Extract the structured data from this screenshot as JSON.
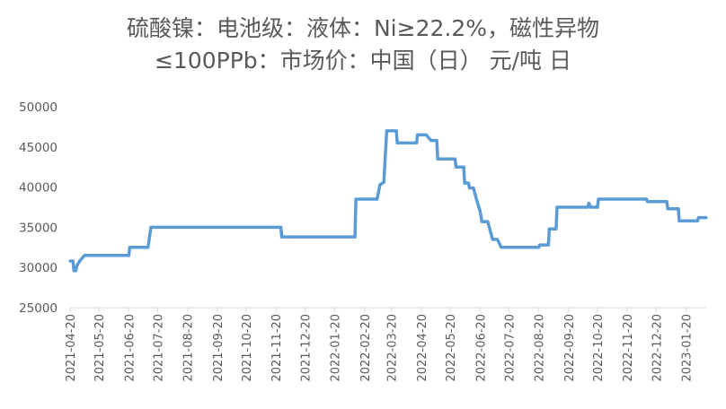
{
  "chart_data": {
    "type": "line",
    "title_line1": "硫酸镍：电池级：液体：Ni≥22.2%，磁性异物",
    "title_line2": "≤100PPb：市场价：中国（日） 元/吨 日",
    "xlabel": "",
    "ylabel": "",
    "ylim": [
      25000,
      50000
    ],
    "yticks": [
      "25000",
      "30000",
      "35000",
      "40000",
      "45000",
      "50000"
    ],
    "xlim": [
      "2021-04-20",
      "2023-02-10"
    ],
    "xticks": [
      "2021-04-20",
      "2021-05-20",
      "2021-06-20",
      "2021-07-20",
      "2021-08-20",
      "2021-09-20",
      "2021-10-20",
      "2021-11-20",
      "2021-12-20",
      "2022-01-20",
      "2022-02-20",
      "2022-03-20",
      "2022-04-20",
      "2022-05-20",
      "2022-06-20",
      "2022-07-20",
      "2022-08-20",
      "2022-09-20",
      "2022-10-20",
      "2022-11-20",
      "2022-12-20",
      "2023-01-20"
    ],
    "grid": false,
    "legend": "none",
    "series": [
      {
        "color": "#5b9bd5",
        "points": [
          [
            "2021-04-20",
            30800
          ],
          [
            "2021-04-23",
            30800
          ],
          [
            "2021-04-24",
            29600
          ],
          [
            "2021-04-26",
            29600
          ],
          [
            "2021-04-27",
            30200
          ],
          [
            "2021-04-30",
            30800
          ],
          [
            "2021-05-05",
            31500
          ],
          [
            "2021-06-20",
            31500
          ],
          [
            "2021-06-21",
            32500
          ],
          [
            "2021-07-10",
            32500
          ],
          [
            "2021-07-13",
            35000
          ],
          [
            "2021-11-25",
            35000
          ],
          [
            "2021-11-26",
            33800
          ],
          [
            "2022-02-10",
            33800
          ],
          [
            "2022-02-11",
            38500
          ],
          [
            "2022-03-05",
            38500
          ],
          [
            "2022-03-08",
            40300
          ],
          [
            "2022-03-12",
            40600
          ],
          [
            "2022-03-15",
            47000
          ],
          [
            "2022-03-25",
            47000
          ],
          [
            "2022-03-26",
            45500
          ],
          [
            "2022-04-15",
            45500
          ],
          [
            "2022-04-16",
            46500
          ],
          [
            "2022-04-25",
            46500
          ],
          [
            "2022-04-30",
            45800
          ],
          [
            "2022-05-06",
            45800
          ],
          [
            "2022-05-07",
            43500
          ],
          [
            "2022-05-25",
            43500
          ],
          [
            "2022-05-26",
            42500
          ],
          [
            "2022-06-03",
            42500
          ],
          [
            "2022-06-04",
            40500
          ],
          [
            "2022-06-08",
            40500
          ],
          [
            "2022-06-09",
            39900
          ],
          [
            "2022-06-13",
            39900
          ],
          [
            "2022-06-16",
            38600
          ],
          [
            "2022-06-20",
            37000
          ],
          [
            "2022-06-22",
            35700
          ],
          [
            "2022-06-28",
            35700
          ],
          [
            "2022-07-03",
            33500
          ],
          [
            "2022-07-08",
            33500
          ],
          [
            "2022-07-12",
            32500
          ],
          [
            "2022-08-20",
            32500
          ],
          [
            "2022-08-21",
            32800
          ],
          [
            "2022-08-30",
            32800
          ],
          [
            "2022-08-31",
            34800
          ],
          [
            "2022-09-07",
            34800
          ],
          [
            "2022-09-08",
            37500
          ],
          [
            "2022-10-10",
            37500
          ],
          [
            "2022-10-11",
            38000
          ],
          [
            "2022-10-13",
            37500
          ],
          [
            "2022-10-20",
            37500
          ],
          [
            "2022-10-21",
            38500
          ],
          [
            "2022-12-10",
            38500
          ],
          [
            "2022-12-11",
            38200
          ],
          [
            "2022-12-31",
            38200
          ],
          [
            "2023-01-01",
            37300
          ],
          [
            "2023-01-12",
            37300
          ],
          [
            "2023-01-13",
            35800
          ],
          [
            "2023-02-01",
            35800
          ],
          [
            "2023-02-02",
            36200
          ],
          [
            "2023-02-10",
            36200
          ]
        ]
      }
    ]
  }
}
